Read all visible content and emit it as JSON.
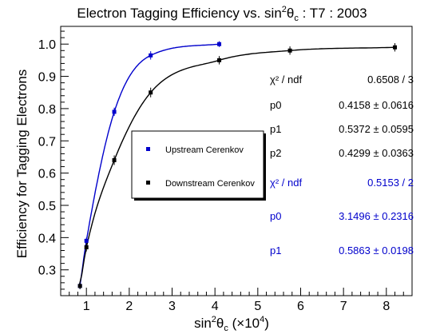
{
  "chart_data": {
    "type": "scatter",
    "title": "Electron Tagging Efficiency vs. sin²θc : T7 : 2003",
    "title_parts": {
      "pre": "Electron Tagging Efficiency vs. sin",
      "sup": "2",
      "theta": "θ",
      "sub": "c",
      "post": " : T7 : 2003"
    },
    "xlabel": "sin²θc (×10⁴)",
    "xlabel_parts": {
      "pre": "sin",
      "sup": "2",
      "theta": "θ",
      "sub": "c",
      "post": " (×10",
      "sup2": "4",
      "close": ")"
    },
    "ylabel": "Efficiency for Tagging Electrons",
    "xlim": [
      0.4,
      8.6
    ],
    "ylim": [
      0.22,
      1.055
    ],
    "x_ticks": [
      1,
      2,
      3,
      4,
      5,
      6,
      7,
      8
    ],
    "y_ticks": [
      0.3,
      0.4,
      0.5,
      0.6,
      0.7,
      0.8,
      0.9,
      1.0
    ],
    "y_tick_labels": [
      "0.3",
      "0.4",
      "0.5",
      "0.6",
      "0.7",
      "0.8",
      "0.9",
      "1.0"
    ],
    "grid": false,
    "legend_position": "center-left",
    "series": [
      {
        "name": "Upstream Cerenkov",
        "color": "#0000cc",
        "marker": "square",
        "x": [
          0.85,
          1.0,
          1.65,
          2.5,
          4.1
        ],
        "y": [
          0.25,
          0.39,
          0.79,
          0.965,
          1.0
        ],
        "yerr": [
          0.005,
          0.005,
          0.008,
          0.008,
          0.004
        ],
        "fit": {
          "form": "1 - exp(-p0*(x - p1))",
          "x_range": [
            0.83,
            4.1
          ]
        },
        "stats": [
          {
            "label": "χ² / ndf",
            "value": "0.5153 / 2"
          },
          {
            "label": "p0",
            "value": "3.1496 ± 0.2316"
          },
          {
            "label": "p1",
            "value": "0.5863 ± 0.0198"
          }
        ]
      },
      {
        "name": "Downstream Cerenkov",
        "color": "#000000",
        "marker": "square",
        "x": [
          0.85,
          1.0,
          1.65,
          2.5,
          4.1,
          5.75,
          8.2
        ],
        "y": [
          0.25,
          0.37,
          0.64,
          0.85,
          0.95,
          0.98,
          0.99
        ],
        "yerr": [
          0.005,
          0.008,
          0.01,
          0.01,
          0.008,
          0.008,
          0.008
        ],
        "fit": {
          "form": "p2 - exp(-p0*(x - p1))",
          "x_range": [
            0.83,
            8.2
          ]
        },
        "stats": [
          {
            "label": "χ² / ndf",
            "value": "0.6508 / 3"
          },
          {
            "label": "p0",
            "value": "0.4158 ± 0.0616"
          },
          {
            "label": "p1",
            "value": "0.5372 ± 0.0595"
          },
          {
            "label": "p2",
            "value": "0.4299 ± 0.0363"
          }
        ]
      }
    ]
  }
}
